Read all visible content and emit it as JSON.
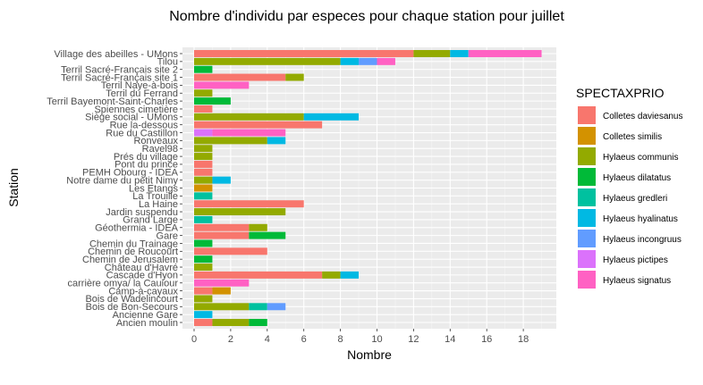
{
  "chart_data": {
    "type": "bar",
    "orientation": "horizontal",
    "stacked": true,
    "title": "Nombre d'individu par especes pour chaque station pour juillet",
    "xlabel": "Nombre",
    "ylabel": "Station",
    "xlim": [
      0,
      19
    ],
    "xticks": [
      0,
      2,
      4,
      6,
      8,
      10,
      12,
      14,
      16,
      18
    ],
    "grid": true,
    "legend": {
      "title": "SPECTAXPRIO",
      "position": "right",
      "entries": [
        {
          "name": "Colletes daviesanus",
          "color": "#F8766D"
        },
        {
          "name": "Colletes similis",
          "color": "#D39200"
        },
        {
          "name": "Hylaeus communis",
          "color": "#93AA00"
        },
        {
          "name": "Hylaeus dilatatus",
          "color": "#00BA38"
        },
        {
          "name": "Hylaeus gredleri",
          "color": "#00C19F"
        },
        {
          "name": "Hylaeus hyalinatus",
          "color": "#00B9E3"
        },
        {
          "name": "Hylaeus incongruus",
          "color": "#619CFF"
        },
        {
          "name": "Hylaeus pictipes",
          "color": "#DB72FB"
        },
        {
          "name": "Hylaeus signatus",
          "color": "#FF61C3"
        }
      ]
    },
    "categories": [
      "Village des abeilles - UMons",
      "Tilou",
      "Terril Sacré-Français site 2",
      "Terril Sacré-Français site 1",
      "Terril Naye-à-bois",
      "Terril du Ferrand",
      "Terril Bayemont-Saint-Charles",
      "Spiennes cimetière",
      "Siège social - UMons",
      "Rue la-dessous",
      "Rue du Castillon",
      "Ronveaux",
      "Ravel98",
      "Prés du village",
      "Pont du prince",
      "PEMH Obourg - IDEA",
      "Notre dame du petit Nimy",
      "Les Etangs",
      "La Trouille",
      "La Haine",
      "Jardin suspendu",
      "Grand Large",
      "Géothermia - IDEA",
      "Gare",
      "Chemin du Trainage",
      "Chemin de Roucourt",
      "Chemin de Jerusalem",
      "Château d'Havré",
      "Cascade d'Hyon",
      "carrière omya/ la Cauiour",
      "Camp-à-cayaux",
      "Bois de Wadelincourt",
      "Bois de Bon-Secours",
      "Ancienne Gare",
      "Ancien moulin"
    ],
    "series": [
      {
        "name": "Colletes daviesanus",
        "values": [
          12,
          0,
          0,
          5,
          0,
          0,
          0,
          1,
          0,
          7,
          0,
          0,
          0,
          0,
          1,
          1,
          0,
          0,
          0,
          6,
          0,
          0,
          3,
          3,
          0,
          4,
          0,
          0,
          7,
          0,
          1,
          0,
          0,
          0,
          1
        ]
      },
      {
        "name": "Colletes similis",
        "values": [
          0,
          0,
          0,
          0,
          0,
          0,
          0,
          0,
          0,
          0,
          0,
          0,
          0,
          0,
          0,
          0,
          0,
          1,
          0,
          0,
          0,
          0,
          0,
          0,
          0,
          0,
          0,
          0,
          0,
          0,
          1,
          0,
          0,
          0,
          0
        ]
      },
      {
        "name": "Hylaeus communis",
        "values": [
          2,
          8,
          0,
          1,
          0,
          1,
          0,
          0,
          6,
          0,
          0,
          4,
          1,
          1,
          0,
          0,
          1,
          0,
          0,
          0,
          5,
          0,
          1,
          0,
          0,
          0,
          0,
          1,
          1,
          0,
          0,
          1,
          3,
          0,
          2
        ]
      },
      {
        "name": "Hylaeus dilatatus",
        "values": [
          0,
          0,
          1,
          0,
          0,
          0,
          2,
          0,
          0,
          0,
          0,
          0,
          0,
          0,
          0,
          0,
          0,
          0,
          0,
          0,
          0,
          0,
          0,
          2,
          1,
          0,
          1,
          0,
          0,
          0,
          0,
          0,
          0,
          0,
          1
        ]
      },
      {
        "name": "Hylaeus gredleri",
        "values": [
          0,
          0,
          0,
          0,
          0,
          0,
          0,
          0,
          0,
          0,
          0,
          0,
          0,
          0,
          0,
          0,
          0,
          0,
          1,
          0,
          0,
          1,
          0,
          0,
          0,
          0,
          0,
          0,
          0,
          0,
          0,
          0,
          1,
          0,
          0
        ]
      },
      {
        "name": "Hylaeus hyalinatus",
        "values": [
          1,
          1,
          0,
          0,
          0,
          0,
          0,
          0,
          3,
          0,
          0,
          1,
          0,
          0,
          0,
          0,
          1,
          0,
          0,
          0,
          0,
          0,
          0,
          0,
          0,
          0,
          0,
          0,
          1,
          0,
          0,
          0,
          0,
          1,
          0
        ]
      },
      {
        "name": "Hylaeus incongruus",
        "values": [
          0,
          1,
          0,
          0,
          0,
          0,
          0,
          0,
          0,
          0,
          0,
          0,
          0,
          0,
          0,
          0,
          0,
          0,
          0,
          0,
          0,
          0,
          0,
          0,
          0,
          0,
          0,
          0,
          0,
          0,
          0,
          0,
          1,
          0,
          0
        ]
      },
      {
        "name": "Hylaeus pictipes",
        "values": [
          0,
          0,
          0,
          0,
          0,
          0,
          0,
          0,
          0,
          0,
          1,
          0,
          0,
          0,
          0,
          0,
          0,
          0,
          0,
          0,
          0,
          0,
          0,
          0,
          0,
          0,
          0,
          0,
          0,
          0,
          0,
          0,
          0,
          0,
          0
        ]
      },
      {
        "name": "Hylaeus signatus",
        "values": [
          4,
          1,
          0,
          0,
          3,
          0,
          0,
          0,
          0,
          0,
          4,
          0,
          0,
          0,
          0,
          0,
          0,
          0,
          0,
          0,
          0,
          0,
          0,
          0,
          0,
          0,
          0,
          0,
          0,
          3,
          0,
          0,
          0,
          0,
          0
        ]
      }
    ]
  }
}
